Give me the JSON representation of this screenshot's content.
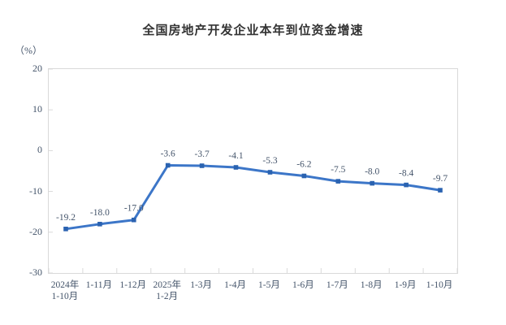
{
  "header": {
    "title": "全国房地产开发企业本年到位资金增速",
    "unit": "（%）"
  },
  "chart_data": {
    "type": "line",
    "title": "全国房地产开发企业本年到位资金增速",
    "xlabel": "",
    "ylabel": "（%）",
    "ylim": [
      -30,
      20
    ],
    "yticks": [
      20,
      10,
      0,
      -10,
      -20,
      -30
    ],
    "grid": false,
    "legend": "none",
    "categories": [
      [
        "2024年",
        "1-10月"
      ],
      [
        "1-11月"
      ],
      [
        "1-12月"
      ],
      [
        "2025年",
        "1-2月"
      ],
      [
        "1-3月"
      ],
      [
        "1-4月"
      ],
      [
        "1-5月"
      ],
      [
        "1-6月"
      ],
      [
        "1-7月"
      ],
      [
        "1-8月"
      ],
      [
        "1-9月"
      ],
      [
        "1-10月"
      ]
    ],
    "values": [
      -19.2,
      -18.0,
      -17.0,
      -3.6,
      -3.7,
      -4.1,
      -5.3,
      -6.2,
      -7.5,
      -8.0,
      -8.4,
      -9.7
    ],
    "data_labels": [
      "-19.2",
      "-18.0",
      "-17.0",
      "-3.6",
      "-3.7",
      "-4.1",
      "-5.3",
      "-6.2",
      "-7.5",
      "-8.0",
      "-8.4",
      "-9.7"
    ],
    "colors": {
      "line": "#3c76c8",
      "marker": "#2a62b0",
      "label_text": "#44546a",
      "title_text": "#333333",
      "axis_border": "#d9d9d9"
    }
  }
}
